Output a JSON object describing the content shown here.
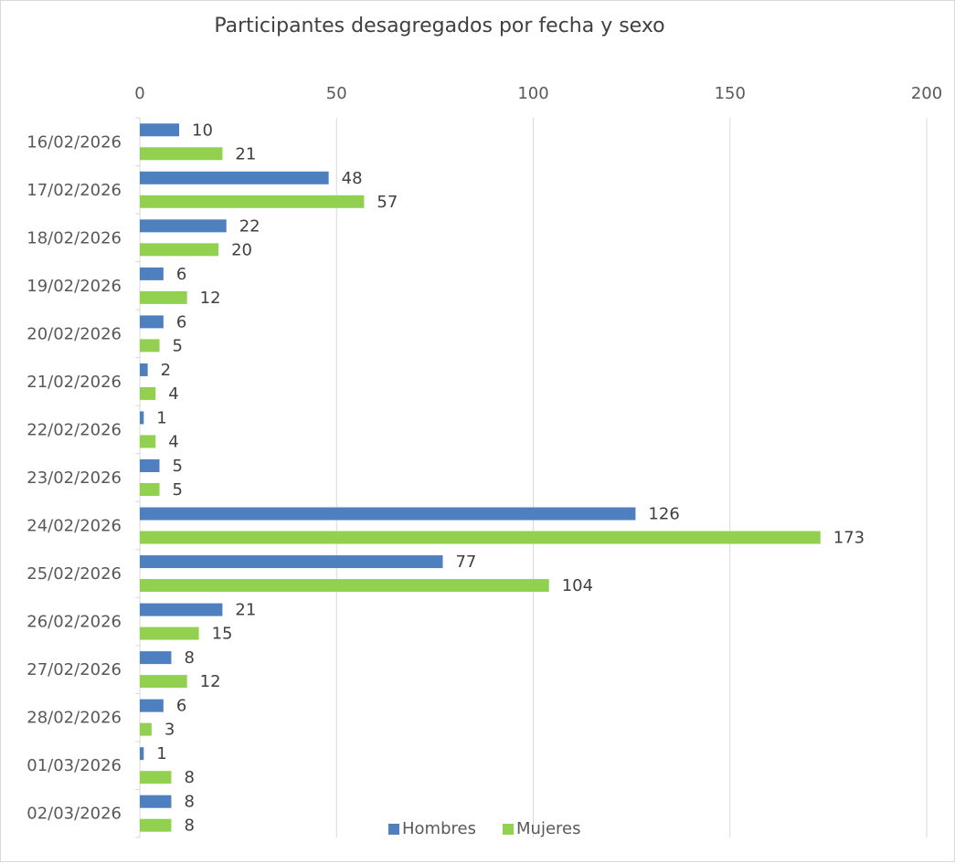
{
  "chart_data": {
    "type": "bar",
    "orientation": "horizontal",
    "title": "Participantes desagregados por fecha y sexo",
    "categories": [
      "16/02/2026",
      "17/02/2026",
      "18/02/2026",
      "19/02/2026",
      "20/02/2026",
      "21/02/2026",
      "22/02/2026",
      "23/02/2026",
      "24/02/2026",
      "25/02/2026",
      "26/02/2026",
      "27/02/2026",
      "28/02/2026",
      "01/03/2026",
      "02/03/2026"
    ],
    "series": [
      {
        "name": "Hombres",
        "color": "#4e7fbf",
        "values": [
          10,
          48,
          22,
          6,
          6,
          2,
          1,
          5,
          126,
          77,
          21,
          8,
          6,
          1,
          8
        ]
      },
      {
        "name": "Mujeres",
        "color": "#92d050",
        "values": [
          21,
          57,
          20,
          12,
          5,
          4,
          4,
          5,
          173,
          104,
          15,
          12,
          3,
          8,
          8
        ]
      }
    ],
    "xlim": [
      0,
      200
    ],
    "xticks": [
      0,
      50,
      100,
      150,
      200
    ],
    "xaxis_position": "top",
    "grid": true,
    "data_labels": true,
    "legend": "bottom"
  }
}
